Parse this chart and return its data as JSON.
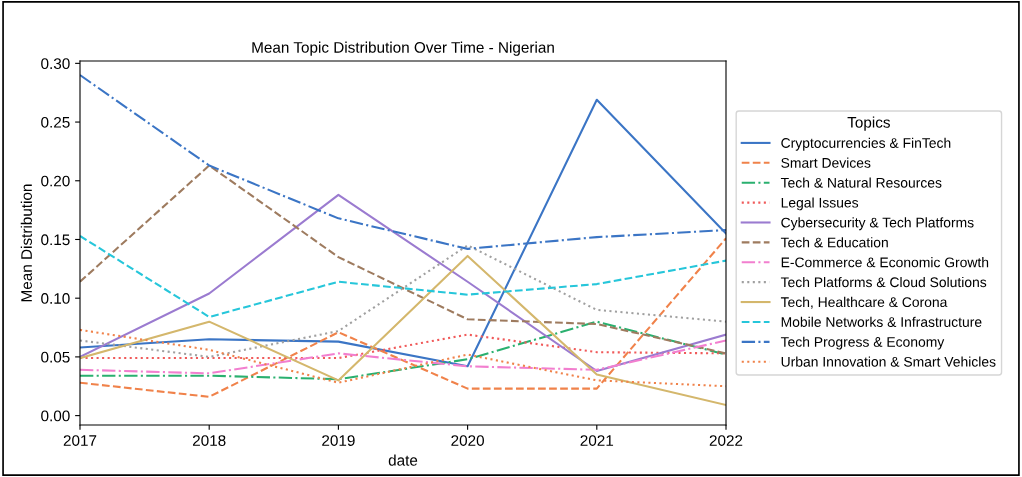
{
  "chart_data": {
    "type": "line",
    "title": "Mean Topic Distribution Over Time - Nigerian",
    "xlabel": "date",
    "ylabel": "Mean Distribution",
    "legend_title": "Topics",
    "legend": "right",
    "grid": false,
    "x": [
      2017,
      2018,
      2019,
      2020,
      2021,
      2022
    ],
    "xlim": [
      2017,
      2022
    ],
    "xticks": [
      2017,
      2018,
      2019,
      2020,
      2021,
      2022
    ],
    "ylim": [
      -0.008,
      0.302
    ],
    "yticks": [
      {
        "value": 0,
        "label": "0.00"
      },
      {
        "value": 0.05,
        "label": "0.05"
      },
      {
        "value": 0.1,
        "label": "0.10"
      },
      {
        "value": 0.15,
        "label": "0.15"
      },
      {
        "value": 0.2,
        "label": "0.20"
      },
      {
        "value": 0.25,
        "label": "0.25"
      },
      {
        "value": 0.3,
        "label": "0.30"
      }
    ],
    "series": [
      {
        "name": "Cryptocurrencies & FinTech",
        "color": "#3b75c5",
        "line_style": "solid",
        "values": [
          0.058,
          0.065,
          0.063,
          0.042,
          0.269,
          0.155
        ]
      },
      {
        "name": "Smart Devices",
        "color": "#f0824a",
        "line_style": "dashed",
        "values": [
          0.028,
          0.016,
          0.071,
          0.023,
          0.023,
          0.151
        ]
      },
      {
        "name": "Tech & Natural Resources",
        "color": "#2ab06f",
        "line_style": "dashdot",
        "values": [
          0.034,
          0.034,
          0.031,
          0.048,
          0.08,
          0.052
        ]
      },
      {
        "name": "Legal Issues",
        "color": "#f05a5a",
        "line_style": "dotted",
        "values": [
          0.049,
          0.049,
          0.049,
          0.069,
          0.054,
          0.053
        ]
      },
      {
        "name": "Cybersecurity & Tech Platforms",
        "color": "#9b7bd0",
        "line_style": "solid",
        "values": [
          0.05,
          0.104,
          0.188,
          0.114,
          0.038,
          0.069
        ]
      },
      {
        "name": "Tech & Education",
        "color": "#9e7b5f",
        "line_style": "dashed",
        "values": [
          0.114,
          0.213,
          0.135,
          0.082,
          0.078,
          0.053
        ]
      },
      {
        "name": "E-Commerce & Economic Growth",
        "color": "#f27fcf",
        "line_style": "dashdot",
        "values": [
          0.039,
          0.036,
          0.053,
          0.042,
          0.039,
          0.064
        ]
      },
      {
        "name": "Tech Platforms & Cloud Solutions",
        "color": "#a0a0a0",
        "line_style": "dotted",
        "values": [
          0.064,
          0.05,
          0.072,
          0.145,
          0.09,
          0.08
        ]
      },
      {
        "name": "Tech, Healthcare & Corona",
        "color": "#d4b76c",
        "line_style": "solid",
        "values": [
          0.049,
          0.08,
          0.03,
          0.136,
          0.035,
          0.009
        ]
      },
      {
        "name": "Mobile Networks & Infrastructure",
        "color": "#26c6da",
        "line_style": "dashed",
        "values": [
          0.153,
          0.084,
          0.114,
          0.103,
          0.112,
          0.132
        ]
      },
      {
        "name": "Tech Progress & Economy",
        "color": "#3b75c5",
        "line_style": "dashdot",
        "values": [
          0.29,
          0.213,
          0.168,
          0.142,
          0.152,
          0.158
        ]
      },
      {
        "name": "Urban Innovation & Smart Vehicles",
        "color": "#f0824a",
        "line_style": "dotted",
        "values": [
          0.073,
          0.056,
          0.028,
          0.052,
          0.03,
          0.025
        ]
      }
    ]
  }
}
